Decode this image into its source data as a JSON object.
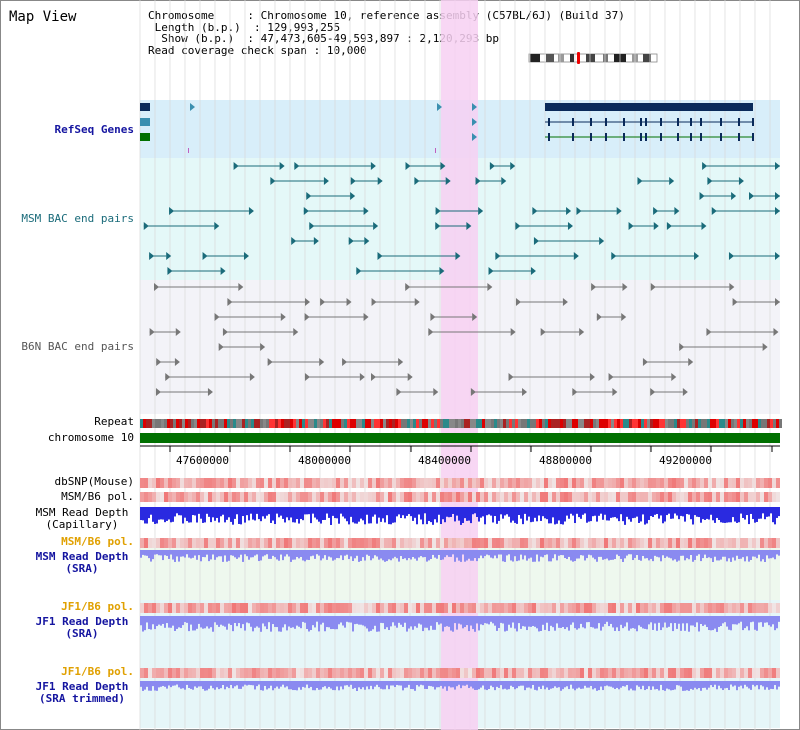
{
  "panel_title": "Map View",
  "info": {
    "chromosome_key": "Chromosome",
    "chromosome_val": "Chromosome 10, reference assembly (C57BL/6J) (Build 37)",
    "length_key": "Length (b.p.)",
    "length_val": "129,993,255",
    "show_key": "Show (b.p.)",
    "show_val": "47,473,605-49,593,897 : 2,120,293 bp",
    "span_key": "Read coverage check span",
    "span_val": "10,000"
  },
  "tracks": {
    "refseq": "RefSeq Genes",
    "msm_bac": "MSM BAC end pairs",
    "b6n_bac": "B6N BAC end pairs",
    "repeat": "Repeat",
    "chromosome": "chromosome 10",
    "dbsnp": "dbSNP(Mouse)",
    "msm_b6_pol_1": "MSM/B6 pol.",
    "msm_read_depth_cap_1": "MSM Read Depth",
    "msm_read_depth_cap_2": "(Capillary)",
    "msm_b6_pol_2": "MSM/B6 pol.",
    "msm_read_depth_sra_1": "MSM Read Depth",
    "msm_read_depth_sra_2": "(SRA)",
    "jf1_b6_pol_1": "JF1/B6 pol.",
    "jf1_read_depth_sra_1": "JF1 Read Depth",
    "jf1_read_depth_sra_2": "(SRA)",
    "jf1_b6_pol_2": "JF1/B6 pol.",
    "jf1_read_depth_trim_1": "JF1 Read Depth",
    "jf1_read_depth_trim_2": "(SRA trimmed)"
  },
  "axis_ticks": [
    "47600000",
    "48000000",
    "48400000",
    "48800000",
    "49200000"
  ],
  "colors": {
    "refseq_bg": "#d8eefa",
    "msm_bg": "#e4f8f8",
    "b6n_bg": "#f3f3f8",
    "highlight": "#f7d0f2",
    "chromosome": "#007000",
    "gene_navy": "#0a2a5a",
    "gene_teal": "#3a8fb0",
    "gene_green": "#007000",
    "msm_pair": "#1a6b7a",
    "b6n_pair": "#777777",
    "depth_blue": "#2a2ae0",
    "depth_light": "#8a8af0"
  }
}
